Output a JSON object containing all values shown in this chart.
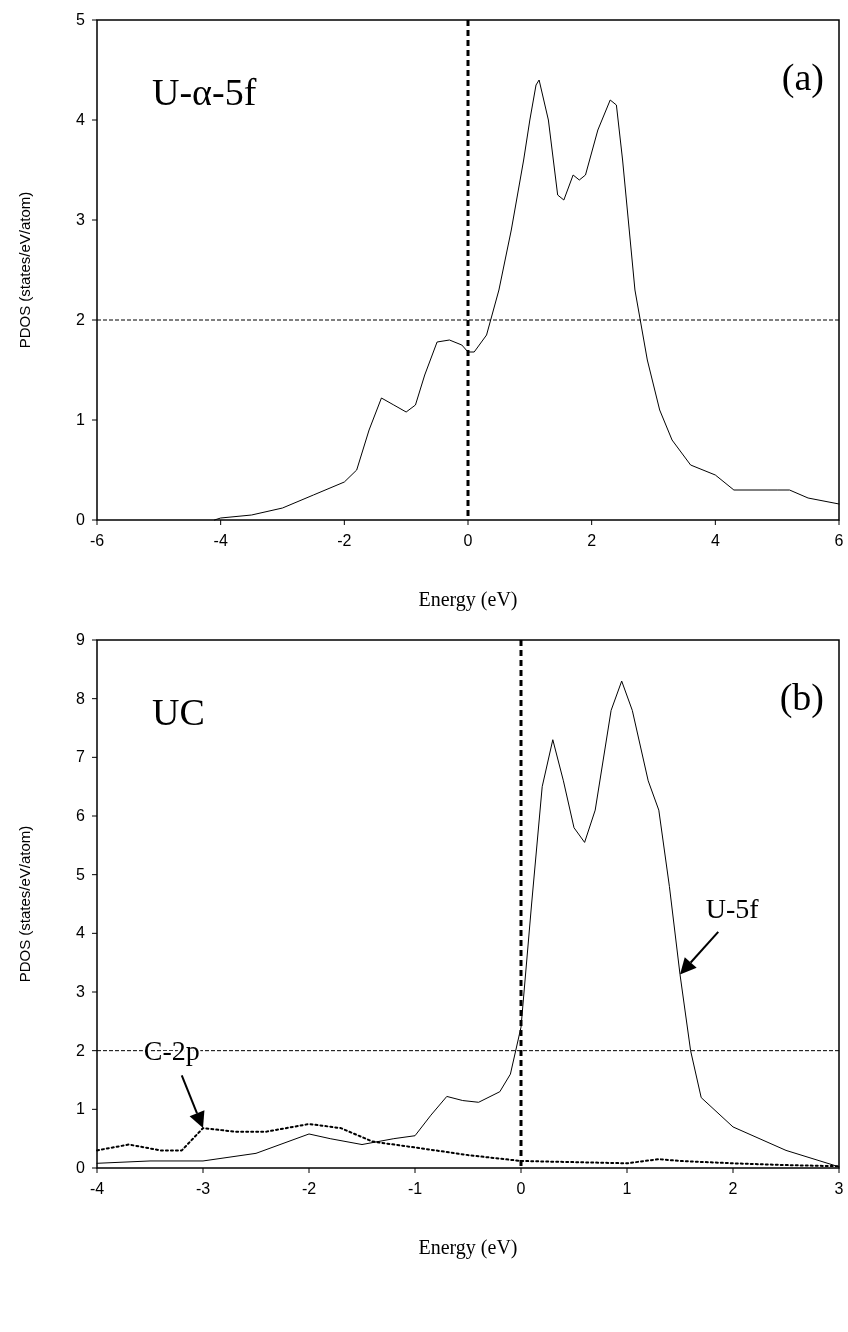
{
  "chart_data": [
    {
      "type": "line",
      "xlabel": "Energy (eV)",
      "ylabel": "PDOS (states/eV/atom)",
      "xlim": [
        -6,
        6
      ],
      "xticks": [
        -6,
        -4,
        -2,
        0,
        2,
        4,
        6
      ],
      "ylim": [
        0,
        5
      ],
      "yticks": [
        0,
        1,
        2,
        3,
        4,
        5
      ],
      "grid": false,
      "annotations": [
        "U-α-5f",
        "(a)"
      ],
      "ref_lines": [
        {
          "axis": "x",
          "value": 0,
          "line_style": "dashed",
          "color": "#000000"
        },
        {
          "axis": "y",
          "value": 2,
          "line_style": "dashed",
          "color": "#000000"
        }
      ],
      "series": [
        {
          "color": "#000000",
          "line_style": "solid",
          "x": [
            -4.1,
            -4,
            -3.5,
            -3,
            -2.5,
            -2,
            -1.8,
            -1.6,
            -1.4,
            -1.2,
            -1,
            -0.85,
            -0.7,
            -0.5,
            -0.3,
            -0.1,
            0,
            0.1,
            0.3,
            0.5,
            0.7,
            0.9,
            1,
            1.1,
            1.15,
            1.3,
            1.45,
            1.55,
            1.7,
            1.8,
            1.9,
            2.1,
            2.3,
            2.4,
            2.5,
            2.7,
            2.9,
            3.1,
            3.3,
            3.6,
            4,
            4.3,
            5,
            5.2,
            5.5,
            6
          ],
          "values": [
            0,
            0.02,
            0.05,
            0.12,
            0.25,
            0.38,
            0.5,
            0.9,
            1.22,
            1.15,
            1.08,
            1.15,
            1.45,
            1.78,
            1.8,
            1.75,
            1.68,
            1.68,
            1.85,
            2.3,
            2.9,
            3.6,
            4,
            4.35,
            4.4,
            4,
            3.25,
            3.2,
            3.45,
            3.4,
            3.45,
            3.9,
            4.2,
            4.15,
            3.6,
            2.3,
            1.6,
            1.1,
            0.8,
            0.55,
            0.45,
            0.3,
            0.3,
            0.3,
            0.22,
            0.16
          ]
        }
      ]
    },
    {
      "type": "line",
      "xlabel": "Energy (eV)",
      "ylabel": "PDOS (states/eV/atom)",
      "xlim": [
        -4,
        3
      ],
      "xticks": [
        -4,
        -3,
        -2,
        -1,
        0,
        1,
        2,
        3
      ],
      "ylim": [
        0,
        9
      ],
      "yticks": [
        0,
        1,
        2,
        3,
        4,
        5,
        6,
        7,
        8,
        9
      ],
      "grid": false,
      "annotations": [
        "UC",
        "(b)",
        {
          "text": "U-5f",
          "x": 1.5,
          "y": 3.3
        },
        {
          "text": "C-2p",
          "x": -3,
          "y": 0.68
        }
      ],
      "ref_lines": [
        {
          "axis": "x",
          "value": 0,
          "line_style": "dashed",
          "color": "#000000"
        },
        {
          "axis": "y",
          "value": 2,
          "line_style": "dashed",
          "color": "#000000"
        }
      ],
      "series": [
        {
          "color": "#000000",
          "line_style": "solid",
          "x": [
            -4,
            -3.5,
            -3,
            -2.5,
            -2,
            -1.8,
            -1.5,
            -1.2,
            -1,
            -0.85,
            -0.7,
            -0.55,
            -0.4,
            -0.2,
            -0.1,
            0,
            0.1,
            0.2,
            0.3,
            0.4,
            0.5,
            0.6,
            0.7,
            0.85,
            0.95,
            1.05,
            1.2,
            1.3,
            1.4,
            1.5,
            1.6,
            1.7,
            2,
            2.5,
            3
          ],
          "values": [
            0.08,
            0.12,
            0.12,
            0.25,
            0.58,
            0.5,
            0.4,
            0.5,
            0.55,
            0.9,
            1.22,
            1.15,
            1.12,
            1.3,
            1.6,
            2.4,
            4.5,
            6.5,
            7.3,
            6.6,
            5.8,
            5.55,
            6.1,
            7.8,
            8.3,
            7.8,
            6.6,
            6.1,
            4.8,
            3.3,
            2,
            1.2,
            0.7,
            0.3,
            0.02
          ]
        },
        {
          "color": "#000000",
          "line_style": "dotted",
          "x": [
            -4,
            -3.7,
            -3.4,
            -3.2,
            -3,
            -2.7,
            -2.4,
            -2,
            -1.7,
            -1.4,
            -1,
            -0.5,
            0,
            0.5,
            1,
            1.3,
            1.5,
            2,
            2.5,
            3
          ],
          "values": [
            0.3,
            0.4,
            0.3,
            0.3,
            0.68,
            0.62,
            0.62,
            0.75,
            0.68,
            0.45,
            0.35,
            0.22,
            0.12,
            0.1,
            0.08,
            0.15,
            0.12,
            0.08,
            0.05,
            0.03
          ]
        }
      ]
    }
  ]
}
